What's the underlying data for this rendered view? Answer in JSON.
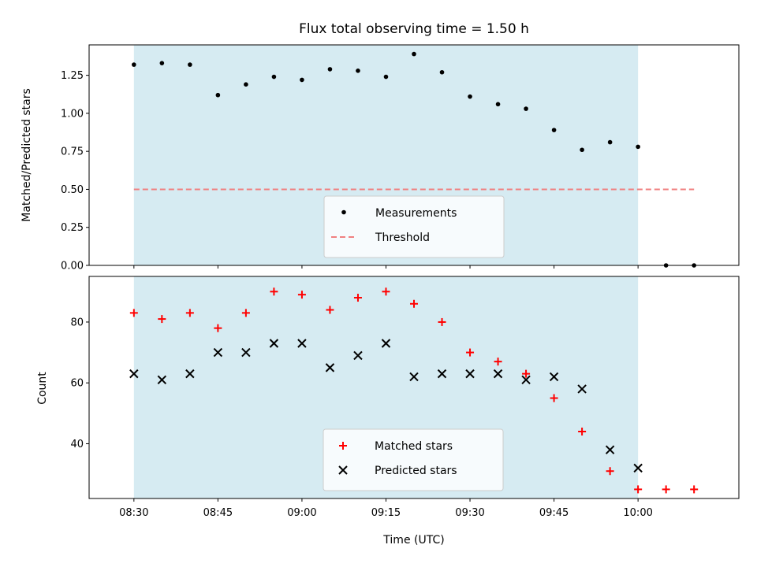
{
  "chart_data": [
    {
      "type": "scatter",
      "title": "Flux total observing time = 1.50 h",
      "xlabel": "",
      "ylabel": "Matched/Predicted stars",
      "ylim": [
        0,
        1.45
      ],
      "yticks": [
        "0.00",
        "0.25",
        "0.50",
        "0.75",
        "1.00",
        "1.25"
      ],
      "shaded_region": {
        "x_start": "08:30",
        "x_end": "10:00",
        "color": "#add8e6"
      },
      "threshold": {
        "name": "Threshold",
        "value": 0.5,
        "color": "#f08080",
        "style": "dashed"
      },
      "series": [
        {
          "name": "Measurements",
          "marker": "dot",
          "color": "#000000",
          "x": [
            "08:30",
            "08:35",
            "08:40",
            "08:45",
            "08:50",
            "08:55",
            "09:00",
            "09:05",
            "09:10",
            "09:15",
            "09:20",
            "09:25",
            "09:30",
            "09:35",
            "09:40",
            "09:45",
            "09:50",
            "09:55",
            "10:00",
            "10:05",
            "10:10"
          ],
          "values": [
            1.32,
            1.33,
            1.32,
            1.12,
            1.19,
            1.24,
            1.22,
            1.29,
            1.28,
            1.24,
            1.39,
            1.27,
            1.11,
            1.06,
            1.03,
            0.89,
            0.76,
            0.81,
            0.78,
            0.0,
            0.0
          ]
        }
      ],
      "legend": {
        "position": "lower center",
        "entries": [
          "Measurements",
          "Threshold"
        ]
      }
    },
    {
      "type": "scatter",
      "xlabel": "Time (UTC)",
      "ylabel": "Count",
      "ylim": [
        22,
        95
      ],
      "yticks": [
        "40",
        "60",
        "80"
      ],
      "xticks": [
        "08:30",
        "08:45",
        "09:00",
        "09:15",
        "09:30",
        "09:45",
        "10:00"
      ],
      "shaded_region": {
        "x_start": "08:30",
        "x_end": "10:00",
        "color": "#add8e6"
      },
      "series": [
        {
          "name": "Matched stars",
          "marker": "plus",
          "color": "#ff0000",
          "x": [
            "08:30",
            "08:35",
            "08:40",
            "08:45",
            "08:50",
            "08:55",
            "09:00",
            "09:05",
            "09:10",
            "09:15",
            "09:20",
            "09:25",
            "09:30",
            "09:35",
            "09:40",
            "09:45",
            "09:50",
            "09:55",
            "10:00",
            "10:05",
            "10:10"
          ],
          "values": [
            83,
            81,
            83,
            78,
            83,
            90,
            89,
            84,
            88,
            90,
            86,
            80,
            70,
            67,
            63,
            55,
            44,
            31,
            25,
            25,
            25
          ]
        },
        {
          "name": "Predicted stars",
          "marker": "x",
          "color": "#000000",
          "x": [
            "08:30",
            "08:35",
            "08:40",
            "08:45",
            "08:50",
            "08:55",
            "09:00",
            "09:05",
            "09:10",
            "09:15",
            "09:20",
            "09:25",
            "09:30",
            "09:35",
            "09:40",
            "09:45",
            "09:50",
            "09:55",
            "10:00"
          ],
          "values": [
            63,
            61,
            63,
            70,
            70,
            73,
            73,
            65,
            69,
            73,
            62,
            63,
            63,
            63,
            61,
            62,
            58,
            38,
            32
          ]
        }
      ],
      "legend": {
        "position": "lower center",
        "entries": [
          "Matched stars",
          "Predicted stars"
        ]
      }
    }
  ]
}
